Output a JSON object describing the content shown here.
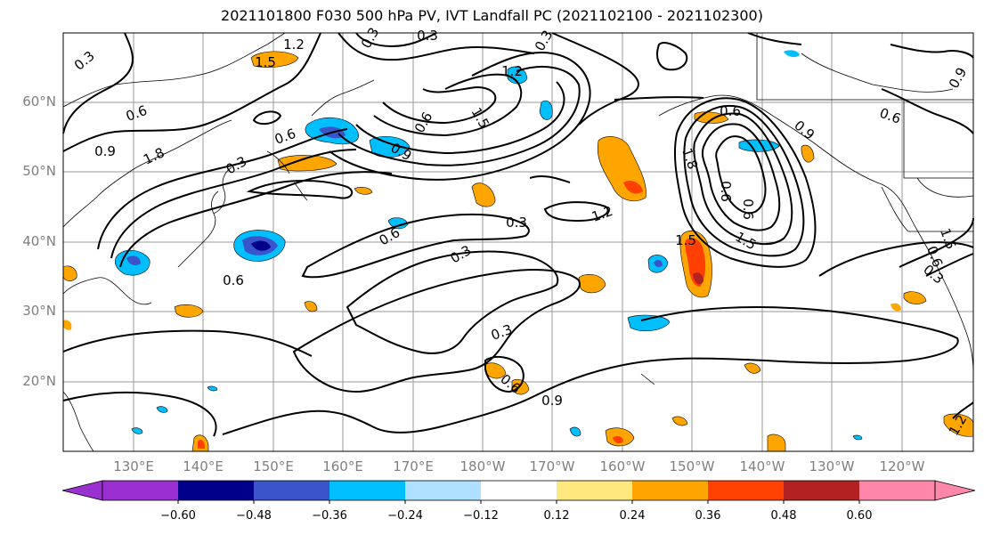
{
  "title": "2021101800 F030 500 hPa PV, IVT Landfall PC (2021102100 - 2021102300)",
  "map": {
    "lon_range": [
      "120°E",
      "115°W"
    ],
    "lat_range": [
      "10°N",
      "70°N"
    ],
    "lat_ticks": [
      "60°N",
      "50°N",
      "40°N",
      "30°N",
      "20°N"
    ],
    "lon_ticks": [
      "130°E",
      "140°E",
      "150°E",
      "160°E",
      "170°E",
      "180°W",
      "170°W",
      "160°W",
      "150°W",
      "140°W",
      "130°W",
      "120°W"
    ],
    "gridlines": true,
    "contour_labels": [
      "0.3",
      "0.6",
      "0.9",
      "1.2",
      "1.5",
      "1.8",
      "0.3",
      "0.6",
      "0.9",
      "1.2",
      "1.5",
      "0.3",
      "0.6",
      "0.3",
      "0.6",
      "0.3",
      "0.6",
      "0.3",
      "0.3",
      "0.6",
      "0.9",
      "1.2",
      "1.5",
      "1.8",
      "0.6",
      "0.6",
      "0.6",
      "0.9",
      "0.6",
      "0.6",
      "0.3",
      "1.5",
      "0.9",
      "1.2",
      "1.5",
      "0.3"
    ]
  },
  "colorbar": {
    "ticks": [
      "−0.60",
      "−0.48",
      "−0.36",
      "−0.24",
      "−0.12",
      "0.12",
      "0.24",
      "0.36",
      "0.48",
      "0.60"
    ],
    "colors": [
      "#9b30d0",
      "#00008b",
      "#3a55cc",
      "#00bfff",
      "#b0e0ff",
      "#ffffff",
      "#ffe97f",
      "#ffa500",
      "#ff4000",
      "#b22222",
      "#ff88aa"
    ]
  }
}
